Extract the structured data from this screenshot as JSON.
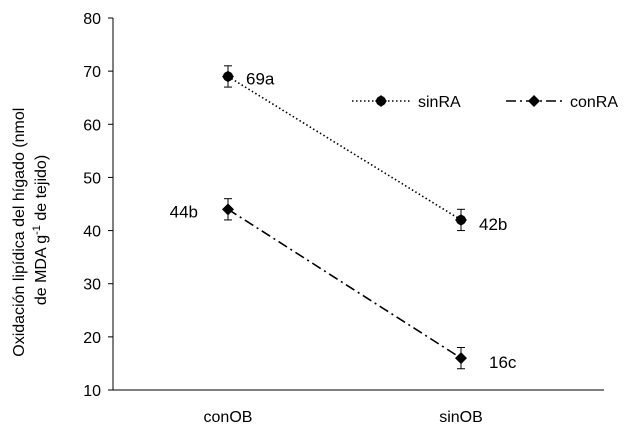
{
  "chart_data": {
    "type": "line",
    "title": "",
    "xlabel": "",
    "ylabel_lines": [
      "Oxidación lipídica  del hígado (nmol",
      "de MDA g",
      "-1",
      " de tejido)"
    ],
    "categories": [
      "conOB",
      "sinOB"
    ],
    "ylim": [
      10,
      80
    ],
    "yticks": [
      10,
      20,
      30,
      40,
      50,
      60,
      70,
      80
    ],
    "grid": false,
    "legend_position": "top-right",
    "series": [
      {
        "name": "sinRA",
        "values": [
          69,
          42
        ],
        "errors": [
          2,
          2
        ],
        "labels": [
          "69a",
          "42b"
        ],
        "line_style": "dotted",
        "marker": "circle",
        "color": "#000000"
      },
      {
        "name": "conRA",
        "values": [
          44,
          16
        ],
        "errors": [
          2,
          2
        ],
        "labels": [
          "44b",
          "16c"
        ],
        "line_style": "dash-dot",
        "marker": "diamond",
        "color": "#000000"
      }
    ]
  }
}
